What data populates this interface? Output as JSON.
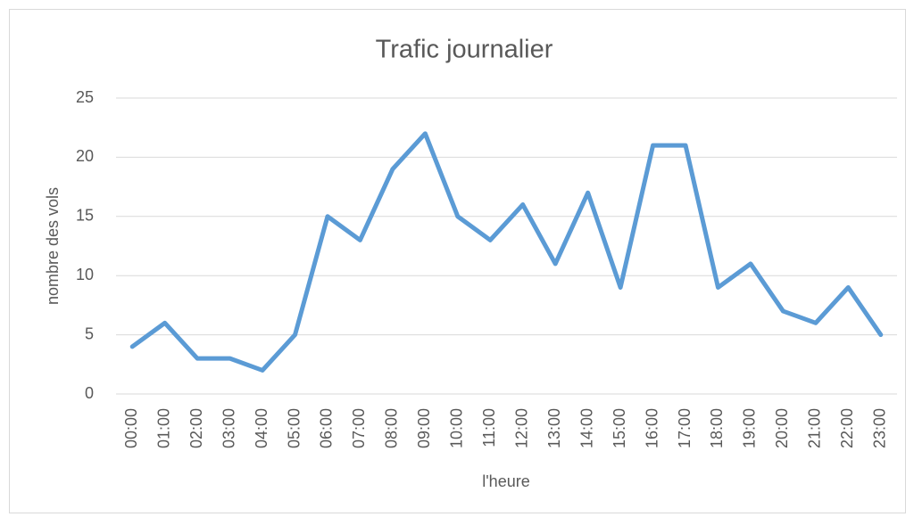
{
  "chart_data": {
    "type": "line",
    "title": "Trafic journalier",
    "x_label": "l'heure",
    "y_label": "nombre des vols",
    "categories": [
      "00:00",
      "01:00",
      "02:00",
      "03:00",
      "04:00",
      "05:00",
      "06:00",
      "07:00",
      "08:00",
      "09:00",
      "10:00",
      "11:00",
      "12:00",
      "13:00",
      "14:00",
      "15:00",
      "16:00",
      "17:00",
      "18:00",
      "19:00",
      "20:00",
      "21:00",
      "22:00",
      "23:00"
    ],
    "series": [
      {
        "name": "nombre des vols",
        "color": "#5b9bd5",
        "values": [
          4,
          6,
          3,
          3,
          2,
          5,
          15,
          13,
          19,
          22,
          15,
          13,
          16,
          11,
          17,
          9,
          21,
          21,
          9,
          11,
          7,
          6,
          9,
          5
        ]
      }
    ],
    "ylim": [
      0,
      25
    ],
    "yticks": [
      0,
      5,
      10,
      15,
      20,
      25
    ],
    "grid": true
  }
}
